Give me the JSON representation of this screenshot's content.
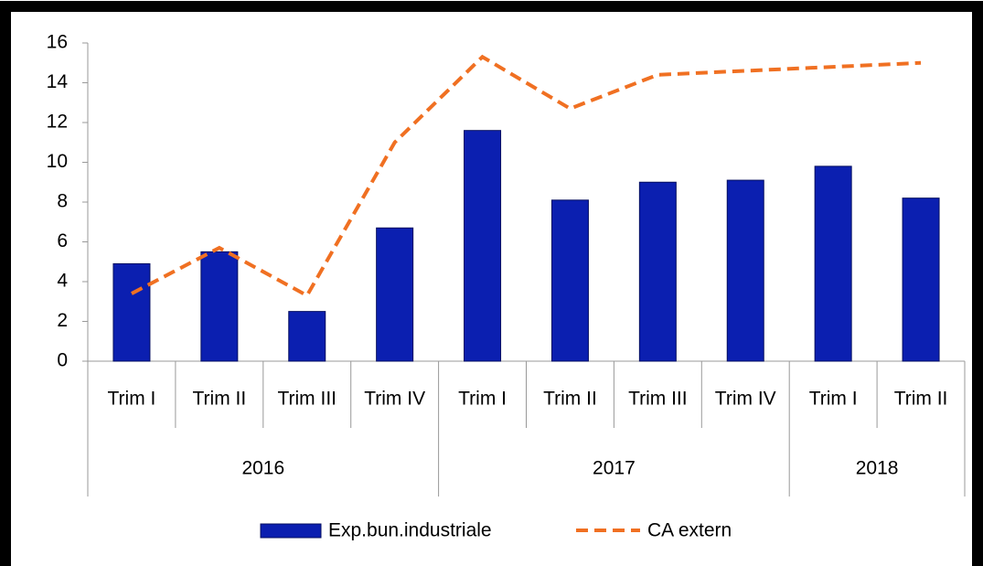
{
  "chart_data": {
    "type": "bar-line",
    "groups": [
      {
        "label": "2016",
        "categories": [
          "Trim I",
          "Trim II",
          "Trim III",
          "Trim IV"
        ]
      },
      {
        "label": "2017",
        "categories": [
          "Trim I",
          "Trim II",
          "Trim III",
          "Trim IV"
        ]
      },
      {
        "label": "2018",
        "categories": [
          "Trim I",
          "Trim II"
        ]
      }
    ],
    "series": [
      {
        "name": "Exp.bun.industriale",
        "type": "bar",
        "color": "#0b1fb0",
        "values": [
          4.9,
          5.5,
          2.5,
          6.7,
          11.6,
          8.1,
          9.0,
          9.1,
          9.8,
          8.2
        ]
      },
      {
        "name": "CA extern",
        "type": "line",
        "color": "#f07022",
        "values": [
          3.4,
          5.7,
          3.3,
          11.0,
          15.3,
          12.7,
          14.4,
          14.6,
          14.8,
          15.0
        ]
      }
    ],
    "ylim": [
      0,
      16
    ],
    "yticks": [
      0,
      2,
      4,
      6,
      8,
      10,
      12,
      14,
      16
    ],
    "legend": "bottom"
  }
}
